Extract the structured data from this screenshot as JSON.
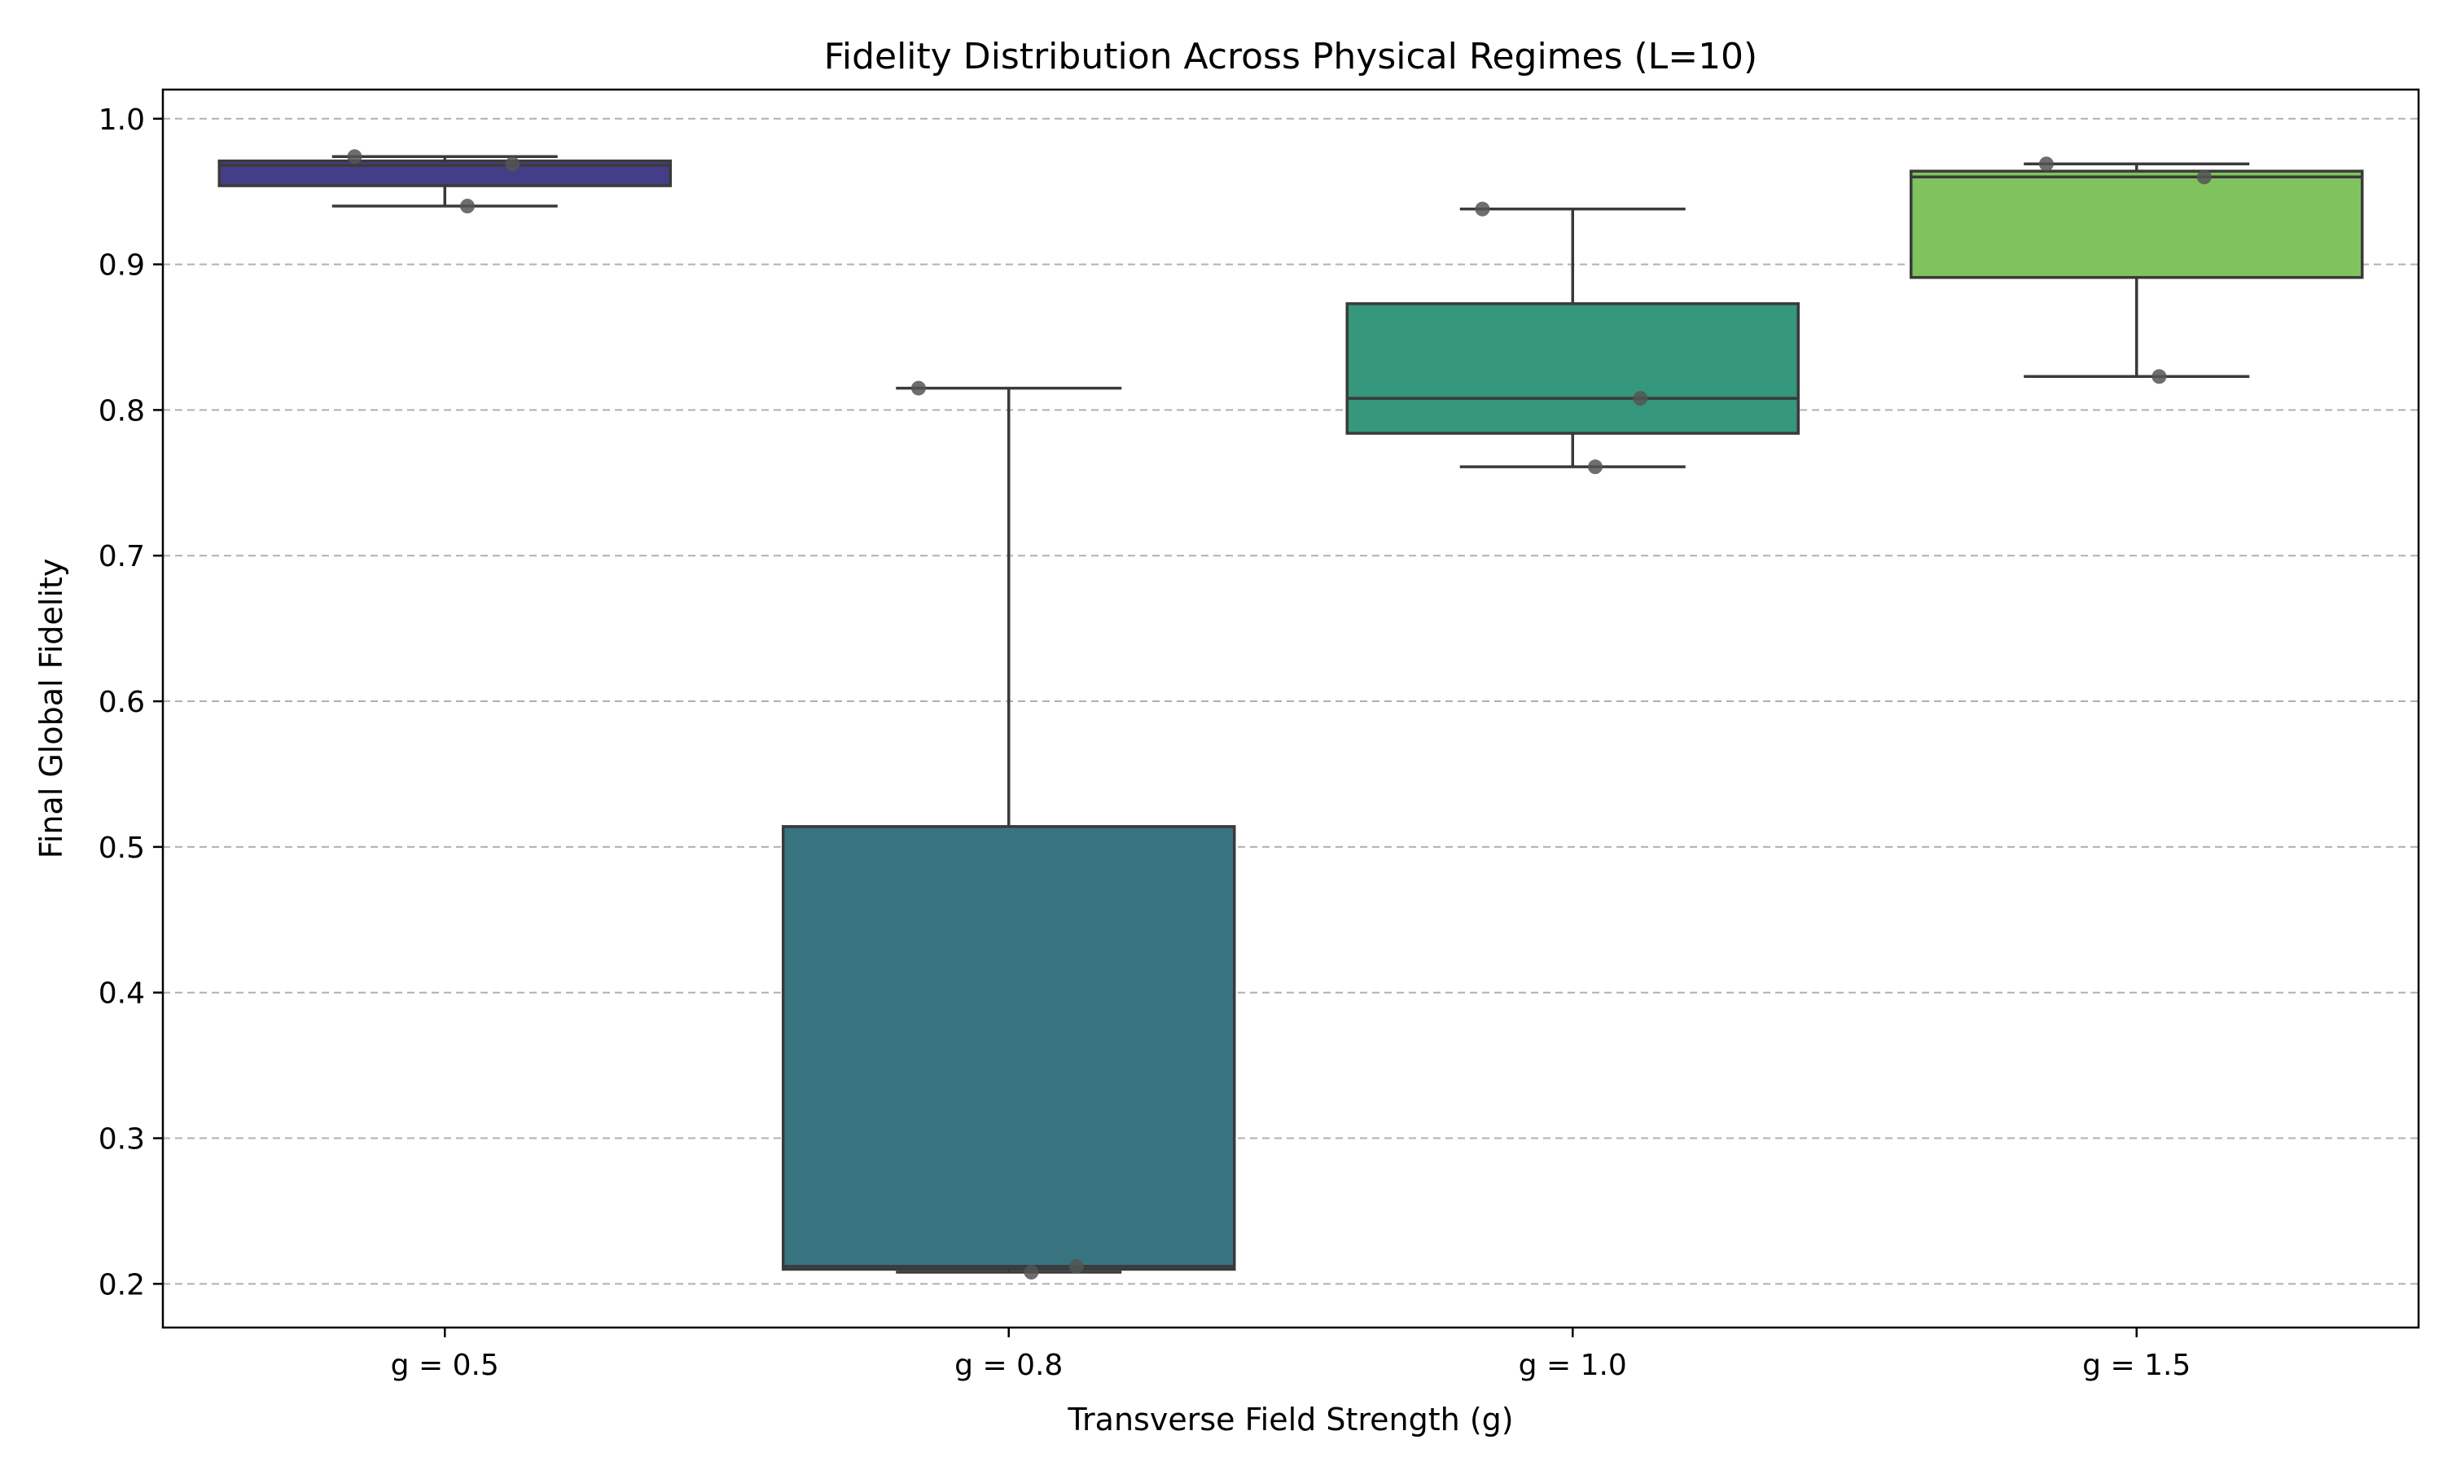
{
  "chart_data": {
    "type": "box",
    "title": "Fidelity Distribution Across Physical Regimes (L=10)",
    "xlabel": "Transverse Field Strength (g)",
    "ylabel": "Final Global Fidelity",
    "ylim": [
      0.17,
      1.02
    ],
    "yticks": [
      0.2,
      0.3,
      0.4,
      0.5,
      0.6,
      0.7,
      0.8,
      0.9,
      1.0
    ],
    "ytick_labels": [
      "0.2",
      "0.3",
      "0.4",
      "0.5",
      "0.6",
      "0.7",
      "0.8",
      "0.9",
      "1.0"
    ],
    "grid": "y-dashed",
    "categories": [
      "g = 0.5",
      "g = 0.8",
      "g = 1.0",
      "g = 1.5"
    ],
    "boxes": [
      {
        "category": "g = 0.5",
        "color": "#433e85",
        "whisker_low": 0.94,
        "q1": 0.954,
        "median": 0.968,
        "q3": 0.971,
        "whisker_high": 0.974,
        "points": [
          0.974,
          0.969,
          0.94
        ]
      },
      {
        "category": "g = 0.8",
        "color": "#38747f",
        "whisker_low": 0.208,
        "q1": 0.21,
        "median": 0.212,
        "q3": 0.514,
        "whisker_high": 0.815,
        "points": [
          0.815,
          0.212,
          0.208
        ]
      },
      {
        "category": "g = 1.0",
        "color": "#35977b",
        "whisker_low": 0.761,
        "q1": 0.784,
        "median": 0.808,
        "q3": 0.873,
        "whisker_high": 0.938,
        "points": [
          0.938,
          0.808,
          0.761
        ]
      },
      {
        "category": "g = 1.5",
        "color": "#7fc25e",
        "whisker_low": 0.823,
        "q1": 0.891,
        "median": 0.96,
        "q3": 0.964,
        "whisker_high": 0.969,
        "points": [
          0.969,
          0.96,
          0.823
        ]
      }
    ]
  }
}
